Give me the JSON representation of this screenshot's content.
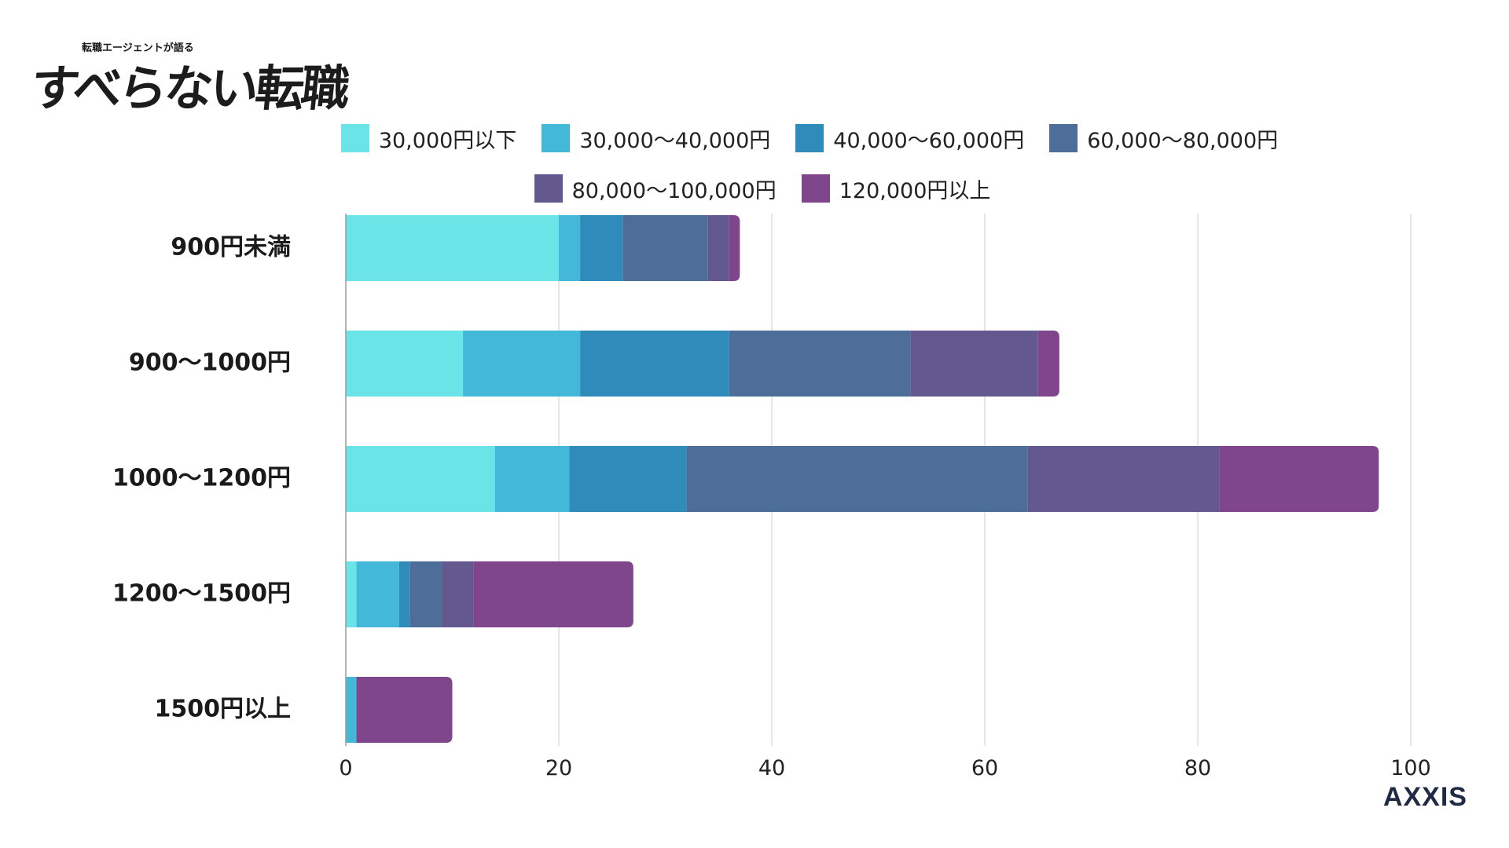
{
  "header": {
    "logo_subtitle": "転職エージェントが語る",
    "logo_title": "すべらない転職"
  },
  "brand": {
    "name": "AXXIS"
  },
  "chart_data": {
    "type": "bar",
    "orientation": "horizontal",
    "stacked": true,
    "title": "",
    "xlabel": "",
    "ylabel": "",
    "xlim": [
      0,
      100
    ],
    "x_ticks": [
      "0",
      "20",
      "40",
      "60",
      "80",
      "100"
    ],
    "grid": true,
    "legend_position": "top",
    "categories": [
      "900円未満",
      "900〜1000円",
      "1000〜1200円",
      "1200〜1500円",
      "1500円以上"
    ],
    "series": [
      {
        "name": "30,000円以下",
        "color": "#6be4e8",
        "values": [
          20,
          11,
          14,
          1,
          0
        ]
      },
      {
        "name": "30,000〜40,000円",
        "color": "#43b8d8",
        "values": [
          2,
          11,
          7,
          4,
          1
        ]
      },
      {
        "name": "40,000〜60,000円",
        "color": "#2e8bba",
        "values": [
          4,
          14,
          11,
          1,
          0
        ]
      },
      {
        "name": "60,000〜80,000円",
        "color": "#4e6e9a",
        "values": [
          8,
          17,
          32,
          3,
          0
        ]
      },
      {
        "name": "80,000〜100,000円",
        "color": "#64598f",
        "values": [
          2,
          12,
          18,
          3,
          0
        ]
      },
      {
        "name": "120,000円以上",
        "color": "#80468c",
        "values": [
          1,
          2,
          15,
          15,
          9
        ]
      }
    ]
  }
}
